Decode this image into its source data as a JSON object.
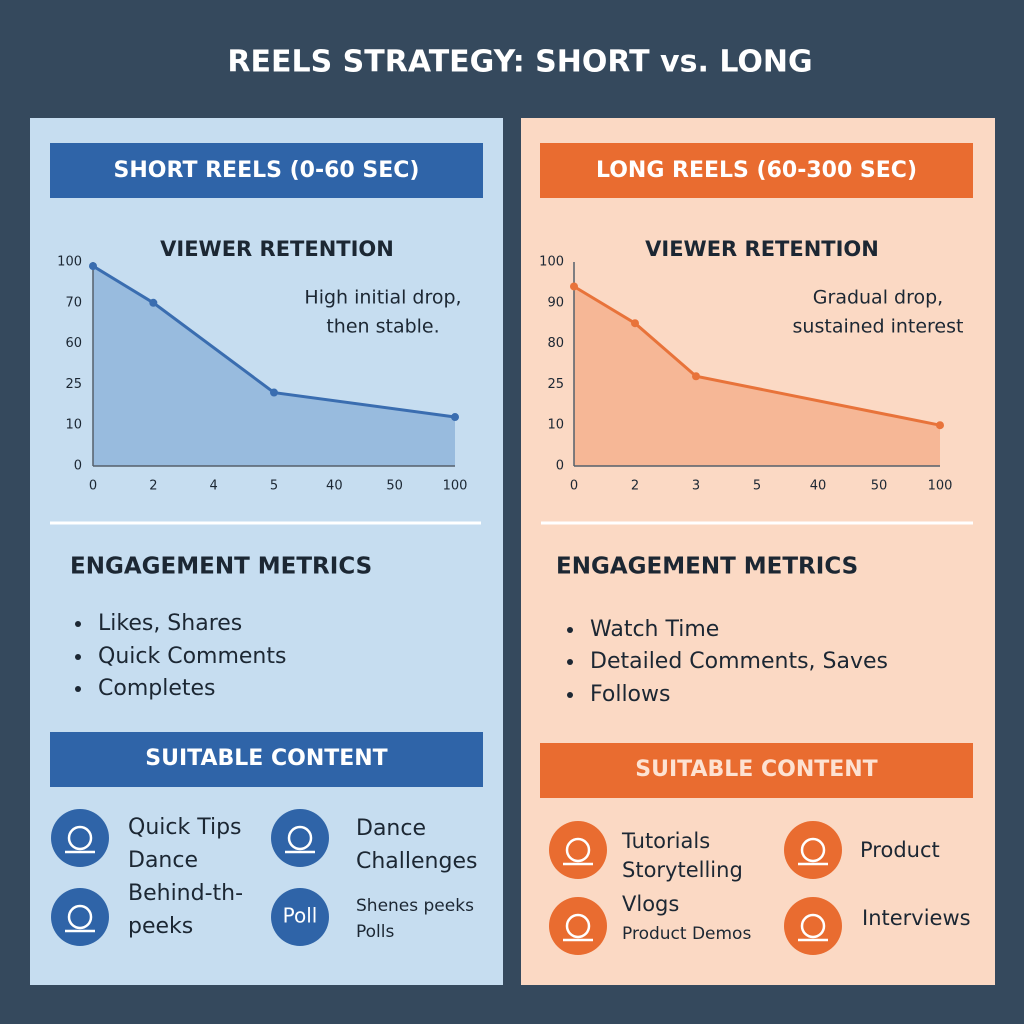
{
  "title": "REELS STRATEGY: SHORT vs. LONG",
  "panels": [
    {
      "header": "SHORT REELS (0-60 SEC)",
      "metrics_title": "ENGAGEMENT METRICS",
      "metrics": [
        "Likes, Shares",
        "Quick Comments",
        "Completes"
      ],
      "content_title": "SUITABLE CONTENT",
      "content": [
        {
          "lines": [
            "Quick Tips",
            "Dance"
          ]
        },
        {
          "lines": [
            "Dance",
            "Challenges"
          ]
        },
        {
          "lines": [
            "Behind-th-",
            "peeks"
          ]
        },
        {
          "icon_label": "Poll",
          "lines": [
            "Shenes peeks",
            "Polls"
          ]
        }
      ]
    },
    {
      "header": "LONG REELS (60-300 SEC)",
      "metrics_title": "ENGAGEMENT METRICS",
      "metrics": [
        "Watch Time",
        "Detailed Comments, Saves",
        "Follows"
      ],
      "content_title": "SUITABLE CONTENT",
      "content": [
        {
          "lines": [
            "Tutorials",
            "Storytelling"
          ]
        },
        {
          "lines": [
            "Product"
          ]
        },
        {
          "lines": [
            "Vlogs",
            "Product Demos"
          ]
        },
        {
          "lines": [
            "Interviews"
          ]
        }
      ]
    }
  ],
  "chart_data": [
    {
      "type": "line",
      "title": "VIEWER RETENTION",
      "annotation": [
        "High initial drop,",
        "then stable."
      ],
      "x": [
        0,
        2,
        5,
        100
      ],
      "values": [
        97,
        70,
        22,
        13
      ],
      "color": "#3a6db0",
      "xticks": [
        0,
        2,
        4,
        5,
        40,
        50,
        100
      ],
      "yticks": [
        0,
        10,
        25,
        60,
        70,
        100
      ]
    },
    {
      "type": "line",
      "title": "VIEWER RETENTION",
      "annotation": [
        "Gradual drop,",
        "sustained interest"
      ],
      "x": [
        0,
        2,
        3,
        100
      ],
      "values": [
        94,
        85,
        36,
        10
      ],
      "color": "#e8733a",
      "xticks": [
        0,
        2,
        3,
        5,
        40,
        50,
        100
      ],
      "yticks": [
        0,
        10,
        25,
        80,
        90,
        100
      ]
    }
  ]
}
